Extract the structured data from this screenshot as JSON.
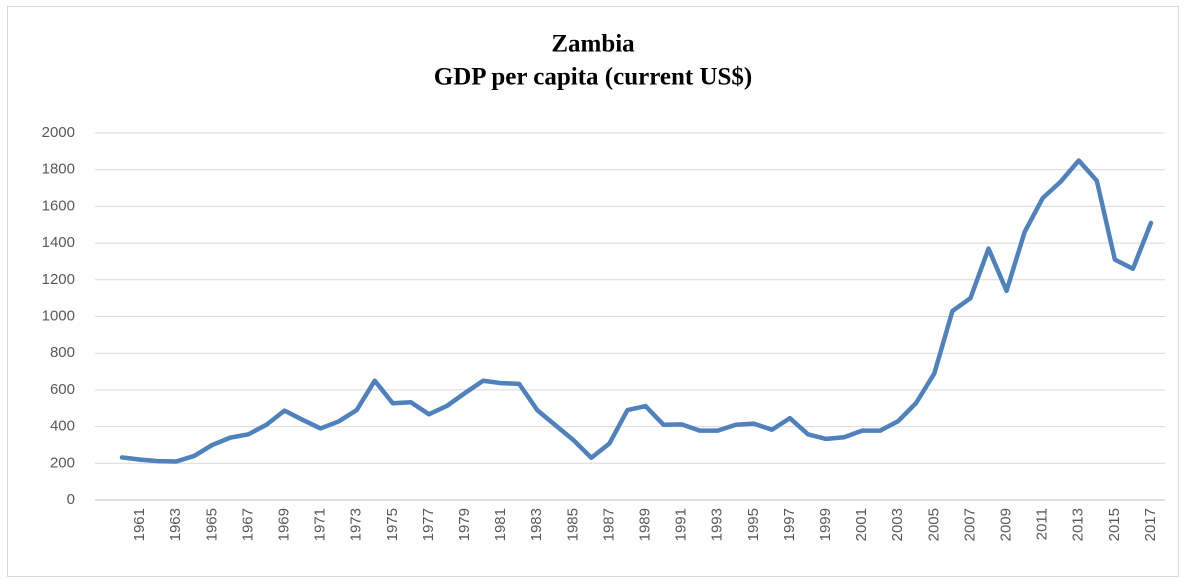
{
  "chart_data": {
    "type": "line",
    "title": "Zambia",
    "subtitle": "GDP per capita (current US$)",
    "categories": [
      null,
      "1961",
      null,
      "1963",
      null,
      "1965",
      null,
      "1967",
      null,
      "1969",
      null,
      "1971",
      null,
      "1973",
      null,
      "1975",
      null,
      "1977",
      null,
      "1979",
      null,
      "1981",
      null,
      "1983",
      null,
      "1985",
      null,
      "1987",
      null,
      "1989",
      null,
      "1991",
      null,
      "1993",
      null,
      "1995",
      null,
      "1997",
      null,
      "1999",
      null,
      "2001",
      null,
      "2003",
      null,
      "2005",
      null,
      "2007",
      null,
      "2009",
      null,
      "2011",
      null,
      "2013",
      null,
      "2015",
      null,
      "2017"
    ],
    "series": [
      {
        "name": "Zambia",
        "color": "#4f81bd",
        "values": [
          232,
          220,
          212,
          210,
          240,
          300,
          340,
          358,
          410,
          487,
          437,
          390,
          428,
          490,
          650,
          527,
          533,
          467,
          513,
          583,
          650,
          637,
          633,
          490,
          408,
          327,
          230,
          308,
          490,
          512,
          410,
          412,
          378,
          378,
          410,
          416,
          383,
          446,
          358,
          333,
          342,
          378,
          378,
          430,
          530,
          690,
          1030,
          1100,
          1370,
          1140,
          1460,
          1645,
          1735,
          1850,
          1740,
          1310,
          1260,
          1510
        ]
      }
    ],
    "ylim": [
      0,
      2000
    ],
    "yticks": [
      0,
      200,
      400,
      600,
      800,
      1000,
      1200,
      1400,
      1600,
      1800,
      2000
    ],
    "grid": true
  }
}
